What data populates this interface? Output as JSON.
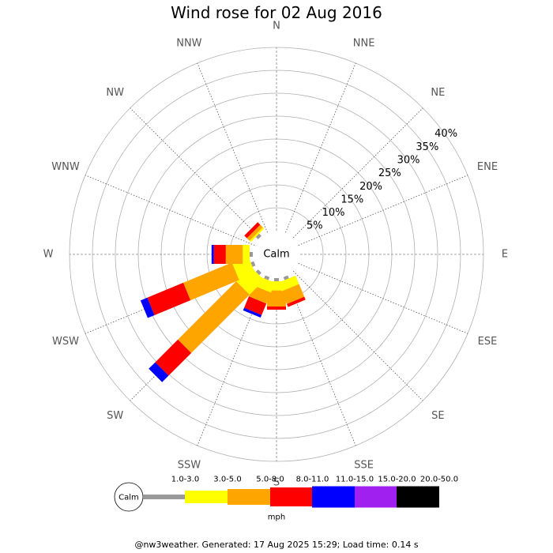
{
  "chart_data": {
    "type": "wind-rose",
    "title": "Wind rose for 02 Aug 2016",
    "directions": [
      "N",
      "NNE",
      "NE",
      "ENE",
      "E",
      "ESE",
      "SE",
      "SSE",
      "S",
      "SSW",
      "SW",
      "WSW",
      "W",
      "WNW",
      "NW",
      "NNW"
    ],
    "radial_ticks": [
      "5%",
      "10%",
      "15%",
      "20%",
      "25%",
      "30%",
      "35%",
      "40%"
    ],
    "radial_max": 40,
    "calm_label": "Calm",
    "unit": "mph",
    "grid": true,
    "legend_position": "bottom",
    "speed_bins": [
      {
        "label": "1.0-3.0",
        "color": "#999999"
      },
      {
        "label": "3.0-5.0",
        "color": "#ffff00"
      },
      {
        "label": "5.0-8.0",
        "color": "#ffa500"
      },
      {
        "label": "8.0-11.0",
        "color": "#ff0000"
      },
      {
        "label": "11.0-15.0",
        "color": "#0000ff"
      },
      {
        "label": "15.0-20.0",
        "color": "#a020f0"
      },
      {
        "label": "20.0-50.0",
        "color": "#000000"
      }
    ],
    "series": [
      {
        "direction": "S",
        "values": [
          0.7,
          2.0,
          3.5,
          0.7,
          0,
          0,
          0
        ]
      },
      {
        "direction": "SSE",
        "values": [
          0.7,
          2.0,
          3.0,
          0.7,
          0,
          0,
          0
        ]
      },
      {
        "direction": "SSW",
        "values": [
          0.7,
          2.3,
          2.6,
          2.7,
          0.6,
          0,
          0
        ]
      },
      {
        "direction": "SW",
        "values": [
          0.7,
          4.5,
          18.0,
          7.0,
          2.0,
          0,
          0
        ]
      },
      {
        "direction": "WSW",
        "values": [
          0.7,
          3.8,
          11.5,
          8.5,
          1.6,
          0,
          0
        ]
      },
      {
        "direction": "W",
        "values": [
          0.7,
          1.5,
          3.7,
          2.6,
          0.5,
          0,
          0
        ]
      },
      {
        "direction": "NW",
        "values": [
          0.7,
          0.4,
          0.8,
          0.8,
          0,
          0,
          0
        ]
      }
    ]
  },
  "footer": "@nw3weather. Generated: 17 Aug 2025 15:29; Load time: 0.14 s"
}
